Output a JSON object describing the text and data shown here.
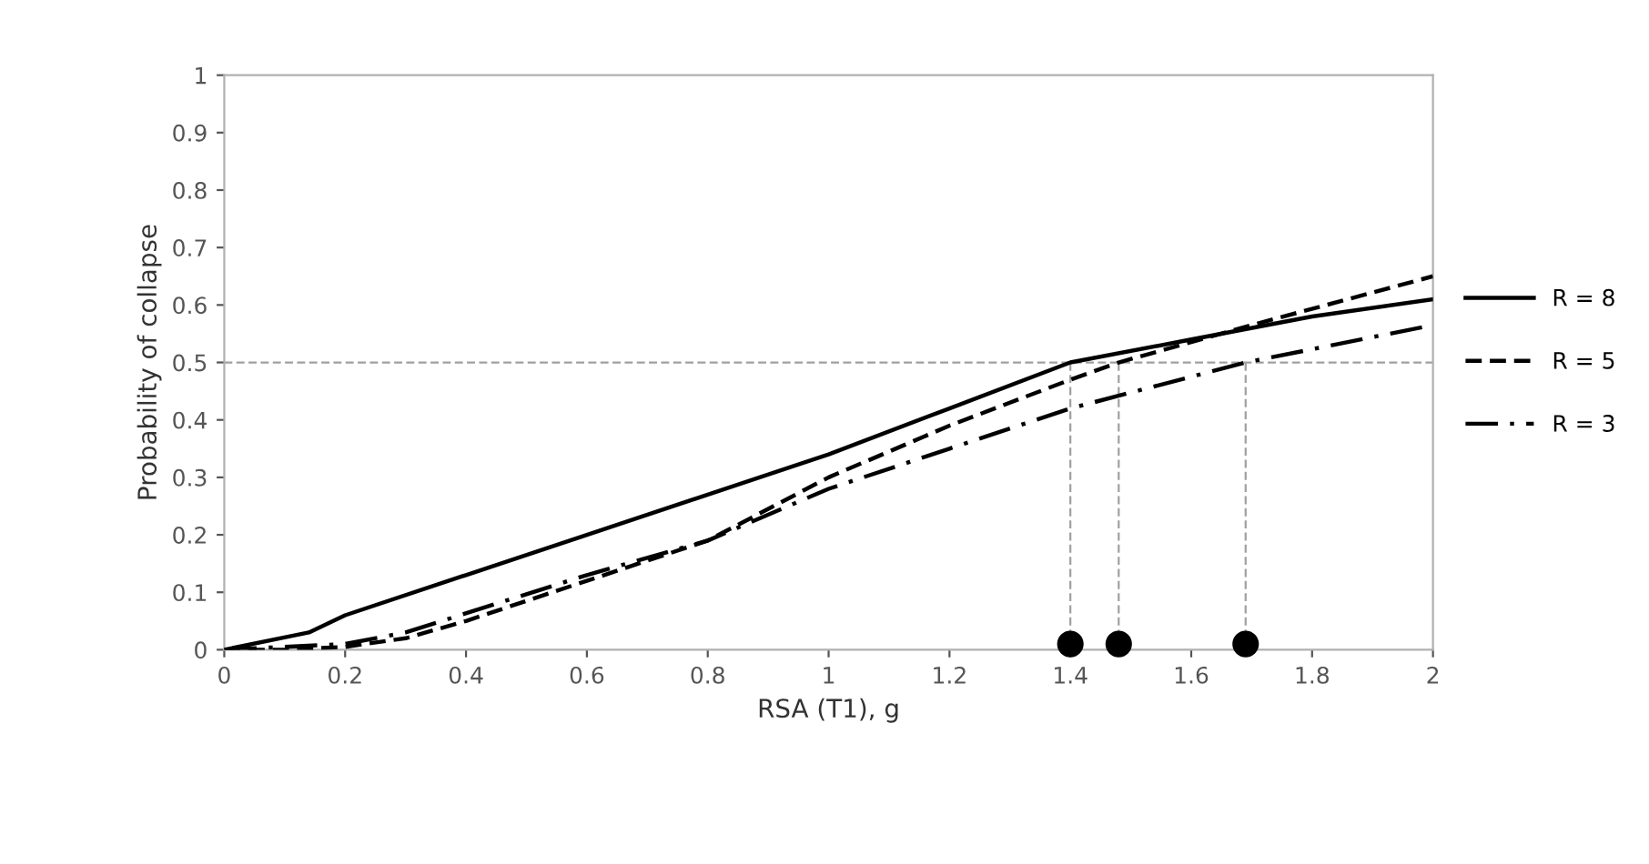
{
  "chart_data": {
    "type": "line",
    "xlabel": "RSA (T1), g",
    "ylabel": "Probability of collapse",
    "xlim": [
      0,
      2
    ],
    "xticks": [
      0,
      0.2,
      0.4,
      0.6,
      0.8,
      1,
      1.2,
      1.4,
      1.6,
      1.8,
      2
    ],
    "ylim": [
      0,
      1
    ],
    "yticks": [
      0,
      0.1,
      0.2,
      0.3,
      0.4,
      0.5,
      0.6,
      0.7,
      0.8,
      0.9,
      1
    ],
    "grid": false,
    "legend": "right",
    "series": [
      {
        "name": "R = 8",
        "color": "#000000",
        "line_style": "solid",
        "x": [
          0,
          0.14,
          0.2,
          0.4,
          0.6,
          0.8,
          1.0,
          1.2,
          1.4,
          1.6,
          1.8,
          2.0
        ],
        "values": [
          0,
          0.03,
          0.06,
          0.13,
          0.2,
          0.27,
          0.34,
          0.42,
          0.5,
          0.54,
          0.58,
          0.61
        ]
      },
      {
        "name": "R = 5",
        "color": "#000000",
        "line_style": "dashed",
        "x": [
          0,
          0.1,
          0.2,
          0.3,
          0.4,
          0.6,
          0.8,
          1.0,
          1.2,
          1.4,
          1.48,
          1.7,
          2.0
        ],
        "values": [
          0,
          0,
          0.005,
          0.02,
          0.05,
          0.12,
          0.19,
          0.3,
          0.39,
          0.47,
          0.5,
          0.565,
          0.65
        ]
      },
      {
        "name": "R = 3",
        "color": "#000000",
        "line_style": "dashdot",
        "x": [
          0,
          0.2,
          0.3,
          0.6,
          0.8,
          1.0,
          1.2,
          1.4,
          1.69,
          2.0
        ],
        "values": [
          0,
          0.01,
          0.03,
          0.13,
          0.19,
          0.28,
          0.35,
          0.42,
          0.5,
          0.565
        ]
      },
      {
        "color": "#a0a0a0",
        "line_style": "dashed",
        "x": [
          1.4,
          1.4
        ],
        "values": [
          0,
          0.5
        ]
      },
      {
        "color": "#a0a0a0",
        "line_style": "dashed",
        "x": [
          1.48,
          1.48
        ],
        "values": [
          0,
          0.5
        ]
      },
      {
        "color": "#a0a0a0",
        "line_style": "dashed",
        "x": [
          1.69,
          1.69
        ],
        "values": [
          0,
          0.5
        ]
      },
      {
        "type": "scatter",
        "marker": "circle",
        "color": "#000000",
        "x": [
          1.4,
          1.48,
          1.69
        ],
        "values": [
          0.01,
          0.01,
          0.01
        ]
      }
    ],
    "ref_lines": [
      {
        "axis": "y",
        "value": 0.5,
        "color": "#a0a0a0",
        "line_style": "dashed"
      }
    ]
  }
}
